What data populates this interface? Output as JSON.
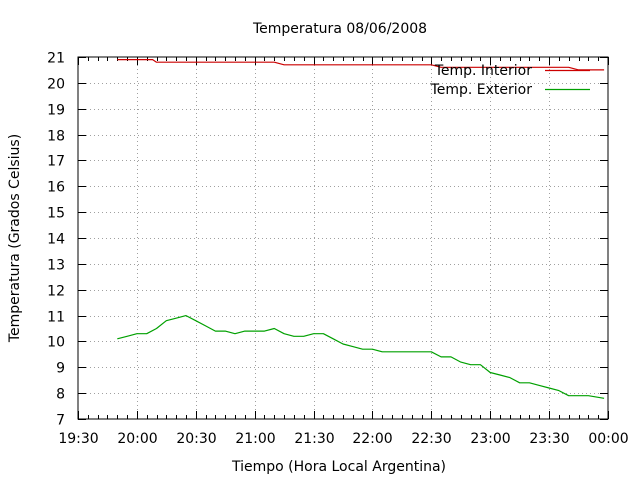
{
  "chart_data": {
    "type": "line",
    "title": "Temperatura 08/06/2008",
    "xlabel": "Tiempo (Hora Local Argentina)",
    "ylabel": "Temperatura (Grados Celsius)",
    "x_ticks": [
      "19:30",
      "20:00",
      "20:30",
      "21:00",
      "21:30",
      "22:00",
      "22:30",
      "23:00",
      "23:30",
      "00:00"
    ],
    "xlim": [
      "19:30",
      "00:00"
    ],
    "ylim": [
      7,
      21
    ],
    "y_ticks": [
      7,
      8,
      9,
      10,
      11,
      12,
      13,
      14,
      15,
      16,
      17,
      18,
      19,
      20,
      21
    ],
    "grid": true,
    "legend_position": "top-right",
    "series": [
      {
        "name": "Temp. Interior",
        "color": "#cc0000",
        "points": [
          [
            "19:50",
            20.9
          ],
          [
            "20:00",
            20.9
          ],
          [
            "20:08",
            20.9
          ],
          [
            "20:10",
            20.8
          ],
          [
            "21:10",
            20.8
          ],
          [
            "21:15",
            20.7
          ],
          [
            "22:30",
            20.7
          ],
          [
            "22:35",
            20.6
          ],
          [
            "23:40",
            20.6
          ],
          [
            "23:45",
            20.5
          ],
          [
            "23:58",
            20.5
          ]
        ]
      },
      {
        "name": "Temp. Exterior",
        "color": "#00a000",
        "points": [
          [
            "19:50",
            10.1
          ],
          [
            "19:55",
            10.2
          ],
          [
            "20:00",
            10.3
          ],
          [
            "20:05",
            10.3
          ],
          [
            "20:10",
            10.5
          ],
          [
            "20:15",
            10.8
          ],
          [
            "20:20",
            10.9
          ],
          [
            "20:25",
            11.0
          ],
          [
            "20:30",
            10.8
          ],
          [
            "20:35",
            10.6
          ],
          [
            "20:40",
            10.4
          ],
          [
            "20:45",
            10.4
          ],
          [
            "20:50",
            10.3
          ],
          [
            "20:55",
            10.4
          ],
          [
            "21:00",
            10.4
          ],
          [
            "21:05",
            10.4
          ],
          [
            "21:10",
            10.5
          ],
          [
            "21:15",
            10.3
          ],
          [
            "21:20",
            10.2
          ],
          [
            "21:25",
            10.2
          ],
          [
            "21:30",
            10.3
          ],
          [
            "21:35",
            10.3
          ],
          [
            "21:40",
            10.1
          ],
          [
            "21:45",
            9.9
          ],
          [
            "21:50",
            9.8
          ],
          [
            "21:55",
            9.7
          ],
          [
            "22:00",
            9.7
          ],
          [
            "22:05",
            9.6
          ],
          [
            "22:10",
            9.6
          ],
          [
            "22:20",
            9.6
          ],
          [
            "22:30",
            9.6
          ],
          [
            "22:35",
            9.4
          ],
          [
            "22:40",
            9.4
          ],
          [
            "22:45",
            9.2
          ],
          [
            "22:50",
            9.1
          ],
          [
            "22:55",
            9.1
          ],
          [
            "23:00",
            8.8
          ],
          [
            "23:05",
            8.7
          ],
          [
            "23:10",
            8.6
          ],
          [
            "23:15",
            8.4
          ],
          [
            "23:20",
            8.4
          ],
          [
            "23:25",
            8.3
          ],
          [
            "23:30",
            8.2
          ],
          [
            "23:35",
            8.1
          ],
          [
            "23:40",
            7.9
          ],
          [
            "23:45",
            7.9
          ],
          [
            "23:50",
            7.9
          ],
          [
            "23:58",
            7.8
          ]
        ]
      }
    ]
  }
}
